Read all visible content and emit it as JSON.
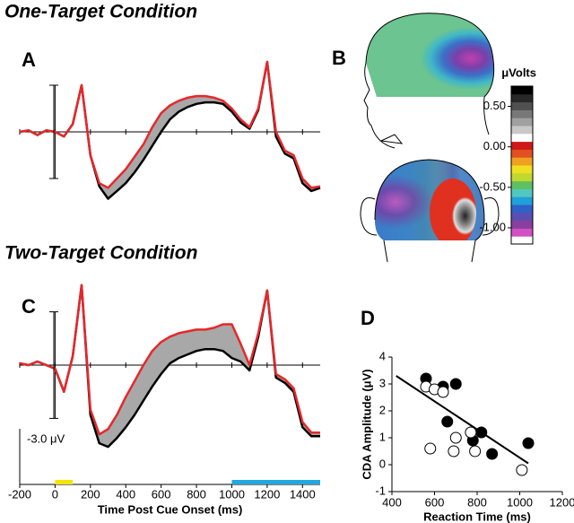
{
  "headings": [
    "One-Target Condition",
    "Two-Target Condition"
  ],
  "panel_letters": [
    "A",
    "B",
    "C",
    "D"
  ],
  "chart_data": [
    {
      "type": "line",
      "x": [
        -200,
        -150,
        -100,
        -50,
        0,
        50,
        100,
        150,
        200,
        250,
        300,
        350,
        400,
        450,
        500,
        550,
        600,
        650,
        700,
        750,
        800,
        850,
        900,
        950,
        1000,
        1050,
        1100,
        1150,
        1200,
        1250,
        1300,
        1350,
        1400,
        1450,
        1500
      ],
      "xlim": [
        -200,
        1500
      ],
      "ylim": [
        -4.5,
        4.5
      ],
      "series": [
        {
          "color": "#000000",
          "values": [
            0,
            0.1,
            -0.2,
            0.1,
            0,
            -0.3,
            0.5,
            3.0,
            -1.5,
            -3.5,
            -4.3,
            -3.8,
            -3.3,
            -2.6,
            -1.8,
            -0.9,
            0.0,
            0.8,
            1.3,
            1.6,
            1.8,
            1.9,
            1.9,
            1.8,
            1.3,
            0.6,
            0.2,
            1.4,
            4.5,
            -0.3,
            -1.4,
            -1.7,
            -3.3,
            -3.8,
            -3.6
          ]
        },
        {
          "color": "#e8272a",
          "values": [
            0,
            0.1,
            -0.2,
            0.1,
            0,
            -0.3,
            0.5,
            3.0,
            -1.5,
            -3.3,
            -3.6,
            -3.0,
            -2.4,
            -1.6,
            -0.8,
            0.3,
            1.2,
            1.7,
            2.0,
            2.2,
            2.3,
            2.3,
            2.2,
            2.0,
            1.5,
            0.8,
            0.3,
            1.5,
            4.5,
            0.0,
            -1.2,
            -1.5,
            -3.0,
            -3.6,
            -3.5
          ]
        }
      ]
    },
    {
      "type": "line",
      "x": [
        -200,
        -150,
        -100,
        -50,
        0,
        50,
        100,
        150,
        200,
        250,
        300,
        350,
        400,
        450,
        500,
        550,
        600,
        650,
        700,
        750,
        800,
        850,
        900,
        950,
        1000,
        1050,
        1100,
        1150,
        1200,
        1250,
        1300,
        1350,
        1400,
        1450,
        1500
      ],
      "xlim": [
        -200,
        1500
      ],
      "ylim": [
        -5,
        5
      ],
      "xticks": [
        -200,
        0,
        200,
        400,
        600,
        800,
        1000,
        1200,
        1400
      ],
      "xlabel": "Time Post Cue Onset (ms)",
      "scale_bar": {
        "value": -3.0,
        "label": "-3.0 μV"
      },
      "highlights": [
        {
          "start": 0,
          "end": 100,
          "color": "#f3e500"
        },
        {
          "start": 1000,
          "end": 1500,
          "color": "#22a8e0"
        }
      ],
      "series": [
        {
          "color": "#000000",
          "values": [
            0.1,
            0,
            0.2,
            0,
            -0.2,
            -1.5,
            0.5,
            4.5,
            -2.8,
            -4.4,
            -4.6,
            -4.1,
            -3.5,
            -2.8,
            -2.0,
            -1.2,
            -0.5,
            0.1,
            0.4,
            0.6,
            0.8,
            0.9,
            0.9,
            0.8,
            0.4,
            0.2,
            -0.3,
            1.6,
            4.2,
            -0.7,
            -1.0,
            -1.5,
            -3.5,
            -4.0,
            -4.0
          ]
        },
        {
          "color": "#e8272a",
          "values": [
            0.1,
            0,
            0.2,
            0,
            -0.2,
            -1.5,
            0.5,
            4.5,
            -2.5,
            -3.9,
            -3.6,
            -2.8,
            -1.8,
            -0.9,
            0,
            0.8,
            1.3,
            1.6,
            1.8,
            1.9,
            2.0,
            2.0,
            2.1,
            2.3,
            2.3,
            1.2,
            0.0,
            1.8,
            4.2,
            -0.5,
            -0.8,
            -1.3,
            -3.2,
            -3.8,
            -3.8
          ]
        }
      ]
    },
    {
      "type": "colorbar",
      "label": "μVolts",
      "ylim": [
        -1.2,
        0.75
      ],
      "colors": [
        "#ffffff",
        "#d24fc4",
        "#8a3fa0",
        "#5a4fb0",
        "#3060c8",
        "#20a0d8",
        "#50c8c0",
        "#60c060",
        "#c0d830",
        "#f0e020",
        "#f0a020",
        "#e05020",
        "#d01818",
        "#ffffff",
        "#c8c8c8",
        "#a0a0a0",
        "#787878",
        "#505050",
        "#282828",
        "#000000"
      ],
      "yticks": [
        {
          "value": 0.5,
          "label": "0.50"
        },
        {
          "value": 0,
          "label": "0.00"
        },
        {
          "value": -0.5,
          "label": "-0.50"
        },
        {
          "value": -1.0,
          "label": "-1.00"
        }
      ]
    },
    {
      "type": "scatter",
      "xlim": [
        400,
        1200
      ],
      "ylim": [
        -1,
        4
      ],
      "xticks": [
        400,
        600,
        800,
        1000,
        1200
      ],
      "yticks": [
        -1,
        0,
        1,
        2,
        3,
        4
      ],
      "xlabel": "Reaction Time (ms)",
      "ylabel": "CDA Amplitude (μV)",
      "fit": {
        "x": [
          420,
          1040
        ],
        "values": [
          3.3,
          0.05
        ]
      },
      "series": [
        {
          "color": "#000000",
          "x": [
            560,
            640,
            700,
            660,
            780,
            820,
            870,
            1040
          ],
          "values": [
            3.2,
            2.9,
            3.0,
            1.6,
            0.9,
            1.2,
            0.4,
            0.8
          ]
        },
        {
          "color": "#ffffff",
          "x": [
            560,
            600,
            640,
            580,
            700,
            690,
            770,
            790,
            1010
          ],
          "values": [
            2.9,
            2.8,
            2.7,
            0.6,
            1.0,
            0.5,
            1.2,
            0.5,
            -0.2
          ]
        }
      ]
    }
  ]
}
